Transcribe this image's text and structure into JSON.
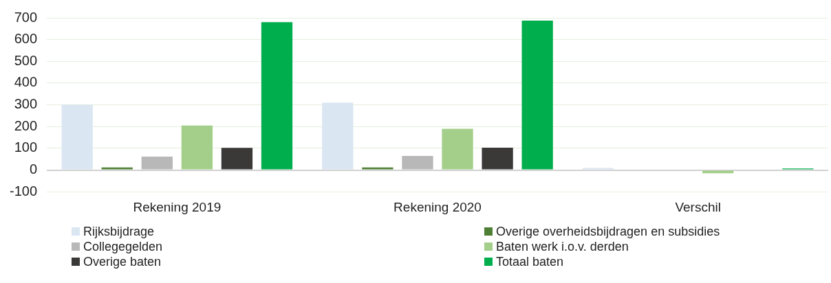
{
  "chart_data": {
    "type": "bar",
    "categories": [
      "Rekening 2019",
      "Rekening 2020",
      "Verschil"
    ],
    "series": [
      {
        "name": "Rijksbijdrage",
        "color": "#dae6f2",
        "values": [
          300,
          310,
          10
        ]
      },
      {
        "name": "Overige overheidsbijdragen en subsidies",
        "color": "#4f7f34",
        "values": [
          12,
          12,
          0
        ]
      },
      {
        "name": "Collegegelden",
        "color": "#b8b8b8",
        "values": [
          62,
          65,
          3
        ]
      },
      {
        "name": "Baten werk i.o.v. derden",
        "color": "#a3cf8a",
        "values": [
          205,
          190,
          -15
        ]
      },
      {
        "name": "Overige baten",
        "color": "#3b3838",
        "values": [
          102,
          103,
          null
        ]
      },
      {
        "name": "Totaal baten",
        "color": "#00ae4d",
        "values": [
          680,
          687,
          7
        ]
      }
    ],
    "ylim": [
      -100,
      700
    ],
    "yticks": [
      -100,
      0,
      100,
      200,
      300,
      400,
      500,
      600,
      700
    ],
    "grid": "y",
    "legend": "bottom"
  }
}
